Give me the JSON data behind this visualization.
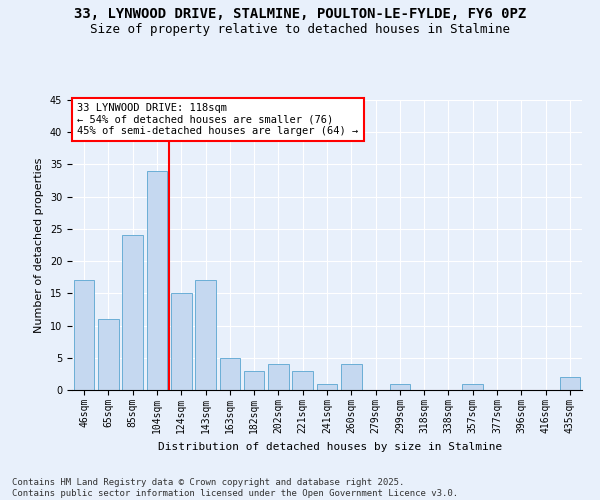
{
  "title": "33, LYNWOOD DRIVE, STALMINE, POULTON-LE-FYLDE, FY6 0PZ",
  "subtitle": "Size of property relative to detached houses in Stalmine",
  "xlabel": "Distribution of detached houses by size in Stalmine",
  "ylabel": "Number of detached properties",
  "categories": [
    "46sqm",
    "65sqm",
    "85sqm",
    "104sqm",
    "124sqm",
    "143sqm",
    "163sqm",
    "182sqm",
    "202sqm",
    "221sqm",
    "241sqm",
    "260sqm",
    "279sqm",
    "299sqm",
    "318sqm",
    "338sqm",
    "357sqm",
    "377sqm",
    "396sqm",
    "416sqm",
    "435sqm"
  ],
  "values": [
    17,
    11,
    24,
    34,
    15,
    17,
    5,
    3,
    4,
    3,
    1,
    4,
    0,
    1,
    0,
    0,
    1,
    0,
    0,
    0,
    2
  ],
  "bar_color": "#c5d8f0",
  "bar_edge_color": "#6aaed6",
  "bg_color": "#e8f0fb",
  "vline_index": 3.5,
  "vline_color": "red",
  "annotation_text": "33 LYNWOOD DRIVE: 118sqm\n← 54% of detached houses are smaller (76)\n45% of semi-detached houses are larger (64) →",
  "annotation_box_color": "white",
  "annotation_box_edge_color": "red",
  "ylim": [
    0,
    45
  ],
  "yticks": [
    0,
    5,
    10,
    15,
    20,
    25,
    30,
    35,
    40,
    45
  ],
  "footer": "Contains HM Land Registry data © Crown copyright and database right 2025.\nContains public sector information licensed under the Open Government Licence v3.0.",
  "title_fontsize": 10,
  "subtitle_fontsize": 9,
  "axis_label_fontsize": 8,
  "tick_fontsize": 7,
  "annotation_fontsize": 7.5,
  "footer_fontsize": 6.5
}
